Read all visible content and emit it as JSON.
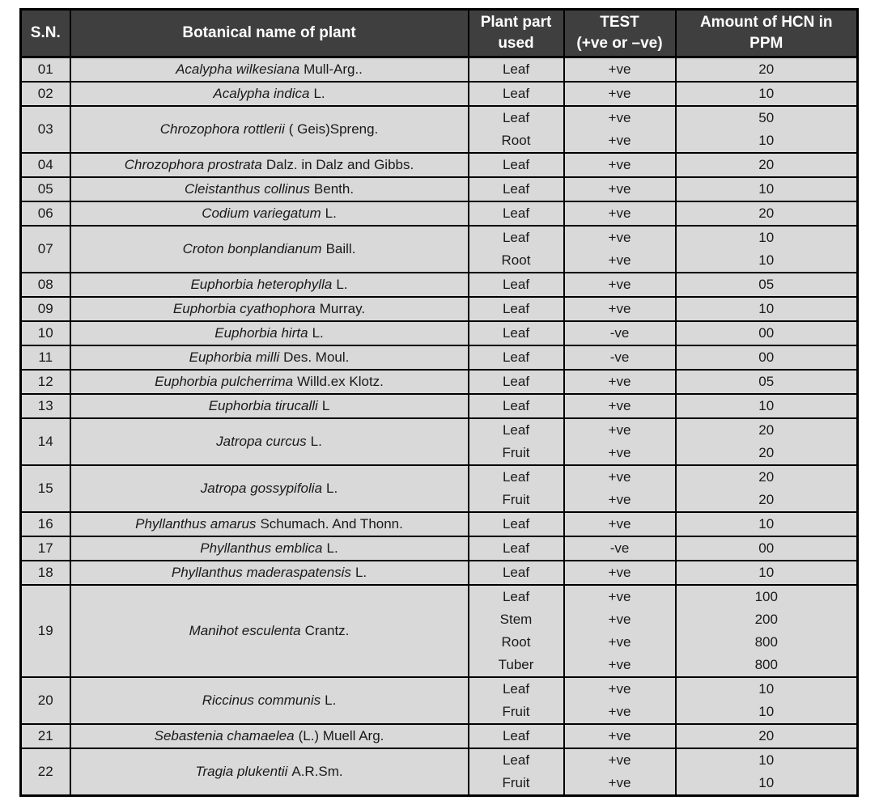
{
  "colors": {
    "header_bg": "#3f3f3f",
    "header_text": "#ffffff",
    "row_bg": "#d9d9d9",
    "border": "#000000"
  },
  "table": {
    "headers": [
      {
        "id": "sn",
        "lines": [
          "S.N."
        ]
      },
      {
        "id": "botanical",
        "lines": [
          "Botanical name of plant"
        ]
      },
      {
        "id": "part",
        "lines": [
          "Plant part",
          "used"
        ]
      },
      {
        "id": "test",
        "lines": [
          "TEST",
          "(+ve or –ve)"
        ]
      },
      {
        "id": "hcn",
        "lines": [
          "Amount of HCN in",
          "PPM"
        ]
      }
    ],
    "rows": [
      {
        "sn": "01",
        "name_italic": "Acalypha wilkesiana",
        "name_rest": "Mull-Arg..",
        "parts": [
          {
            "part": "Leaf",
            "test": "+ve",
            "ppm": "20"
          }
        ]
      },
      {
        "sn": "02",
        "name_italic": "Acalypha indica",
        "name_rest": "L.",
        "parts": [
          {
            "part": "Leaf",
            "test": "+ve",
            "ppm": "10"
          }
        ]
      },
      {
        "sn": "03",
        "name_italic": "Chrozophora rottlerii",
        "name_rest": "( Geis)Spreng.",
        "parts": [
          {
            "part": "Leaf",
            "test": "+ve",
            "ppm": "50"
          },
          {
            "part": "Root",
            "test": "+ve",
            "ppm": "10"
          }
        ]
      },
      {
        "sn": "04",
        "name_italic": "Chrozophora prostrata",
        "name_rest": "Dalz. in Dalz and Gibbs.",
        "parts": [
          {
            "part": "Leaf",
            "test": "+ve",
            "ppm": "20"
          }
        ]
      },
      {
        "sn": "05",
        "name_italic": "Cleistanthus collinus",
        "name_rest": "Benth.",
        "parts": [
          {
            "part": "Leaf",
            "test": "+ve",
            "ppm": "10"
          }
        ]
      },
      {
        "sn": "06",
        "name_italic": "Codium variegatum",
        "name_rest": "L.",
        "parts": [
          {
            "part": "Leaf",
            "test": "+ve",
            "ppm": "20"
          }
        ]
      },
      {
        "sn": "07",
        "name_italic": "Croton bonplandianum",
        "name_rest": "Baill.",
        "parts": [
          {
            "part": "Leaf",
            "test": "+ve",
            "ppm": "10"
          },
          {
            "part": "Root",
            "test": "+ve",
            "ppm": "10"
          }
        ]
      },
      {
        "sn": "08",
        "name_italic": "Euphorbia heterophylla",
        "name_rest": "L.",
        "parts": [
          {
            "part": "Leaf",
            "test": "+ve",
            "ppm": "05"
          }
        ]
      },
      {
        "sn": "09",
        "name_italic": "Euphorbia cyathophora",
        "name_rest": "Murray.",
        "parts": [
          {
            "part": "Leaf",
            "test": "+ve",
            "ppm": "10"
          }
        ]
      },
      {
        "sn": "10",
        "name_italic": "Euphorbia hirta",
        "name_rest": "L.",
        "parts": [
          {
            "part": "Leaf",
            "test": "-ve",
            "ppm": "00"
          }
        ]
      },
      {
        "sn": "11",
        "name_italic": "Euphorbia milli",
        "name_rest": "Des. Moul.",
        "parts": [
          {
            "part": "Leaf",
            "test": "-ve",
            "ppm": "00"
          }
        ]
      },
      {
        "sn": "12",
        "name_italic": "Euphorbia pulcherrima",
        "name_rest": "Willd.ex Klotz.",
        "parts": [
          {
            "part": "Leaf",
            "test": "+ve",
            "ppm": "05"
          }
        ]
      },
      {
        "sn": "13",
        "name_italic": "Euphorbia tirucalli",
        "name_rest": "L",
        "parts": [
          {
            "part": "Leaf",
            "test": "+ve",
            "ppm": "10"
          }
        ]
      },
      {
        "sn": "14",
        "name_italic": "Jatropa curcus",
        "name_rest": "L.",
        "parts": [
          {
            "part": "Leaf",
            "test": "+ve",
            "ppm": "20"
          },
          {
            "part": "Fruit",
            "test": "+ve",
            "ppm": "20"
          }
        ]
      },
      {
        "sn": "15",
        "name_italic": "Jatropa gossypifolia",
        "name_rest": "L.",
        "parts": [
          {
            "part": "Leaf",
            "test": "+ve",
            "ppm": "20"
          },
          {
            "part": "Fruit",
            "test": "+ve",
            "ppm": "20"
          }
        ]
      },
      {
        "sn": "16",
        "name_italic": "Phyllanthus amarus",
        "name_rest": "Schumach. And Thonn.",
        "parts": [
          {
            "part": "Leaf",
            "test": "+ve",
            "ppm": "10"
          }
        ]
      },
      {
        "sn": "17",
        "name_italic": "Phyllanthus emblica",
        "name_rest": "L.",
        "parts": [
          {
            "part": "Leaf",
            "test": "-ve",
            "ppm": "00"
          }
        ]
      },
      {
        "sn": "18",
        "name_italic": "Phyllanthus maderaspatensis",
        "name_rest": "L.",
        "parts": [
          {
            "part": "Leaf",
            "test": "+ve",
            "ppm": "10"
          }
        ]
      },
      {
        "sn": "19",
        "name_italic": "Manihot esculenta",
        "name_rest": "Crantz.",
        "parts": [
          {
            "part": "Leaf",
            "test": "+ve",
            "ppm": "100"
          },
          {
            "part": "Stem",
            "test": "+ve",
            "ppm": "200"
          },
          {
            "part": "Root",
            "test": "+ve",
            "ppm": "800"
          },
          {
            "part": "Tuber",
            "test": "+ve",
            "ppm": "800"
          }
        ]
      },
      {
        "sn": "20",
        "name_italic": "Riccinus communis",
        "name_rest": "L.",
        "parts": [
          {
            "part": "Leaf",
            "test": "+ve",
            "ppm": "10"
          },
          {
            "part": "Fruit",
            "test": "+ve",
            "ppm": "10"
          }
        ]
      },
      {
        "sn": "21",
        "name_italic": "Sebastenia chamaelea",
        "name_rest": "(L.) Muell Arg.",
        "parts": [
          {
            "part": "Leaf",
            "test": "+ve",
            "ppm": "20"
          }
        ]
      },
      {
        "sn": "22",
        "name_italic": "Tragia plukentii",
        "name_rest": "A.R.Sm.",
        "parts": [
          {
            "part": "Leaf",
            "test": "+ve",
            "ppm": "10"
          },
          {
            "part": "Fruit",
            "test": "+ve",
            "ppm": "10"
          }
        ]
      }
    ]
  }
}
